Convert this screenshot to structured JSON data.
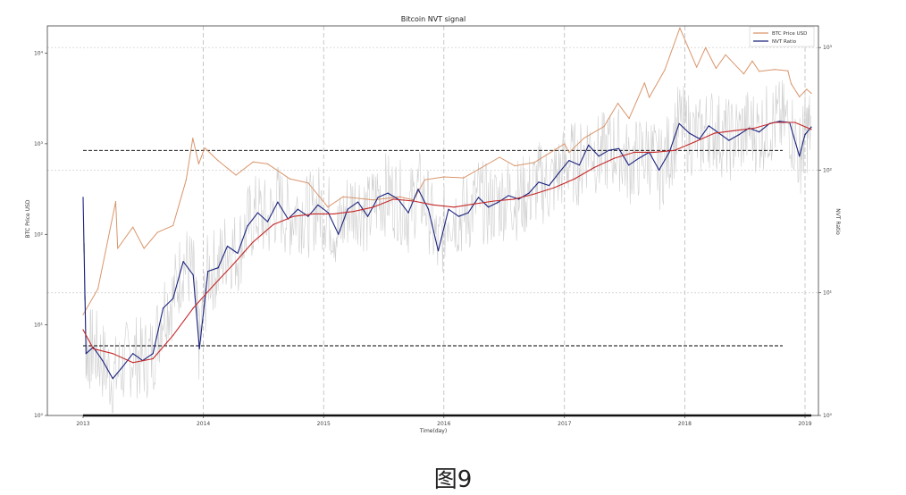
{
  "chart_data": {
    "type": "line",
    "title": "Bitcoin NVT signal",
    "xlabel": "Time(day)",
    "ylabel_left": "BTC Price USD",
    "ylabel_right": "NVT Ratio",
    "x_ticks": [
      "2013",
      "2014",
      "2015",
      "2016",
      "2017",
      "2018",
      "2019"
    ],
    "x_range": [
      "2013-01-01",
      "2019-01-20"
    ],
    "left_axis": {
      "scale": "log",
      "range": [
        1,
        20000
      ],
      "ticks": [
        {
          "value": 1,
          "label": "10⁰"
        },
        {
          "value": 10,
          "label": "10¹"
        },
        {
          "value": 100,
          "label": "10²"
        },
        {
          "value": 1000,
          "label": "10³"
        },
        {
          "value": 10000,
          "label": "10⁴"
        }
      ]
    },
    "right_axis": {
      "scale": "log",
      "range": [
        1,
        1500
      ],
      "ticks": [
        {
          "value": 1,
          "label": "10⁰"
        },
        {
          "value": 10,
          "label": "10¹"
        },
        {
          "value": 100,
          "label": "10²"
        },
        {
          "value": 1000,
          "label": "10³"
        }
      ]
    },
    "grid": true,
    "legend_position": "top-right",
    "series": [
      {
        "name": "BTC Price USD",
        "axis": "left",
        "color": "#d9956b",
        "x": [
          "2013-01-01",
          "2013-02-15",
          "2013-04-10",
          "2013-04-16",
          "2013-06-01",
          "2013-07-05",
          "2013-08-15",
          "2013-10-01",
          "2013-11-10",
          "2013-11-30",
          "2013-12-18",
          "2014-01-05",
          "2014-02-15",
          "2014-04-10",
          "2014-06-01",
          "2014-07-15",
          "2014-09-20",
          "2014-11-15",
          "2015-01-14",
          "2015-03-01",
          "2015-06-01",
          "2015-08-20",
          "2015-10-01",
          "2015-11-04",
          "2016-01-01",
          "2016-03-01",
          "2016-06-18",
          "2016-08-03",
          "2016-10-01",
          "2017-01-01",
          "2017-01-15",
          "2017-03-01",
          "2017-05-01",
          "2017-06-12",
          "2017-07-16",
          "2017-09-01",
          "2017-09-15",
          "2017-11-01",
          "2017-12-17",
          "2018-02-06",
          "2018-03-05",
          "2018-04-06",
          "2018-05-05",
          "2018-06-29",
          "2018-07-25",
          "2018-08-15",
          "2018-10-01",
          "2018-11-10",
          "2018-11-20",
          "2018-12-15",
          "2019-01-06",
          "2019-01-20"
        ],
        "y": [
          13,
          25,
          230,
          70,
          120,
          70,
          105,
          125,
          400,
          1150,
          600,
          900,
          650,
          450,
          630,
          600,
          410,
          370,
          200,
          260,
          240,
          260,
          240,
          400,
          430,
          420,
          710,
          570,
          620,
          1000,
          800,
          1150,
          1550,
          2800,
          1900,
          4700,
          3250,
          6500,
          19000,
          7000,
          11500,
          6800,
          9600,
          5900,
          8200,
          6300,
          6600,
          6400,
          4600,
          3300,
          4000,
          3600
        ]
      },
      {
        "name": "NVT Ratio",
        "axis": "right",
        "color": "#1a237e",
        "x": [
          "2013-01-01",
          "2013-01-10",
          "2013-02-01",
          "2013-03-01",
          "2013-04-01",
          "2013-05-01",
          "2013-06-01",
          "2013-07-01",
          "2013-08-01",
          "2013-09-01",
          "2013-10-01",
          "2013-11-01",
          "2013-12-01",
          "2013-12-20",
          "2014-01-15",
          "2014-02-15",
          "2014-03-15",
          "2014-04-15",
          "2014-05-15",
          "2014-06-15",
          "2014-07-15",
          "2014-08-15",
          "2014-09-15",
          "2014-10-15",
          "2014-11-15",
          "2014-12-15",
          "2015-01-15",
          "2015-02-15",
          "2015-03-15",
          "2015-04-15",
          "2015-05-15",
          "2015-06-15",
          "2015-07-15",
          "2015-08-15",
          "2015-09-15",
          "2015-10-15",
          "2015-11-15",
          "2015-12-15",
          "2016-01-15",
          "2016-02-15",
          "2016-03-15",
          "2016-04-15",
          "2016-05-15",
          "2016-06-15",
          "2016-07-15",
          "2016-08-15",
          "2016-09-15",
          "2016-10-15",
          "2016-11-15",
          "2016-12-15",
          "2017-01-15",
          "2017-02-15",
          "2017-03-15",
          "2017-04-15",
          "2017-05-15",
          "2017-06-15",
          "2017-07-15",
          "2017-08-15",
          "2017-09-15",
          "2017-10-15",
          "2017-11-15",
          "2017-12-15",
          "2018-01-15",
          "2018-02-15",
          "2018-03-15",
          "2018-04-15",
          "2018-05-15",
          "2018-06-15",
          "2018-07-15",
          "2018-08-15",
          "2018-09-15",
          "2018-10-15",
          "2018-11-15",
          "2018-12-15",
          "2019-01-01",
          "2019-01-20"
        ],
        "y": [
          60,
          3.2,
          3.6,
          2.8,
          2.0,
          2.5,
          3.2,
          2.8,
          3.2,
          7.5,
          9.0,
          18.0,
          14.0,
          3.5,
          15.0,
          16.0,
          24.0,
          21.0,
          35.0,
          45.0,
          38.0,
          55.0,
          40.0,
          48.0,
          42.0,
          52.0,
          45.0,
          30.0,
          48.0,
          55.0,
          42.0,
          60.0,
          65.0,
          58.0,
          45.0,
          70.0,
          48.0,
          22.0,
          48.0,
          42.0,
          45.0,
          60.0,
          50.0,
          55.0,
          62.0,
          58.0,
          65.0,
          80.0,
          75.0,
          95.0,
          120.0,
          110.0,
          160.0,
          130.0,
          145.0,
          150.0,
          110.0,
          125.0,
          140.0,
          100.0,
          140.0,
          240.0,
          200.0,
          180.0,
          230.0,
          200.0,
          175.0,
          195.0,
          220.0,
          205.0,
          240.0,
          250.0,
          245.0,
          130.0,
          195.0,
          225.0
        ]
      },
      {
        "name": "",
        "axis": "right",
        "color": "#c62828",
        "x": [
          "2013-01-01",
          "2013-02-01",
          "2013-04-01",
          "2013-06-01",
          "2013-08-01",
          "2013-10-01",
          "2013-12-01",
          "2014-02-01",
          "2014-04-01",
          "2014-06-01",
          "2014-08-01",
          "2014-10-01",
          "2014-12-01",
          "2015-02-01",
          "2015-04-01",
          "2015-06-01",
          "2015-08-01",
          "2015-10-01",
          "2015-12-01",
          "2016-02-01",
          "2016-04-01",
          "2016-06-01",
          "2016-08-01",
          "2016-10-01",
          "2016-12-01",
          "2017-02-01",
          "2017-04-01",
          "2017-06-01",
          "2017-08-01",
          "2017-10-01",
          "2017-12-01",
          "2018-02-01",
          "2018-04-01",
          "2018-06-01",
          "2018-08-01",
          "2018-10-01",
          "2018-12-01",
          "2019-01-20"
        ],
        "y": [
          5.0,
          3.5,
          3.2,
          2.7,
          2.9,
          4.5,
          7.5,
          11.5,
          17.0,
          26.0,
          36.0,
          42.0,
          44.0,
          44.0,
          46.0,
          50.0,
          58.0,
          56.0,
          52.0,
          50.0,
          53.0,
          56.0,
          58.0,
          64.0,
          72.0,
          85.0,
          105.0,
          125.0,
          140.0,
          140.0,
          145.0,
          170.0,
          200.0,
          210.0,
          220.0,
          245.0,
          245.0,
          215.0
        ]
      }
    ],
    "reference_lines": [
      {
        "axis": "right",
        "value": 145,
        "style": "dashed",
        "color": "#000000"
      },
      {
        "axis": "right",
        "value": 3.7,
        "style": "dashed",
        "color": "#000000"
      }
    ],
    "raw_noise_series": {
      "axis": "right",
      "color": "#cfcfcf"
    }
  },
  "caption": "图9"
}
